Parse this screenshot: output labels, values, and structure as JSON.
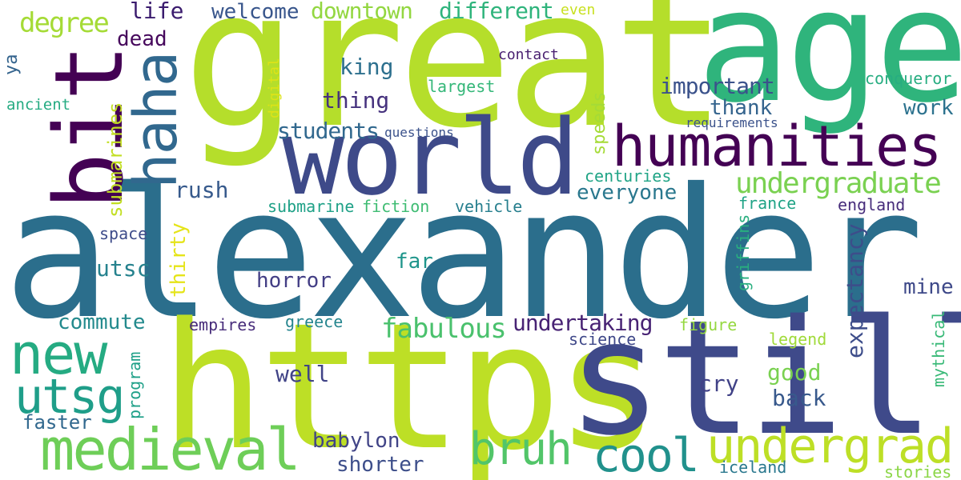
{
  "word_cloud": {
    "background": "#ffffff",
    "words": [
      {
        "text": "alexander",
        "color": "#2b6e8c"
      },
      {
        "text": "great",
        "color": "#b5de2b"
      },
      {
        "text": "age",
        "color": "#2fb47c"
      },
      {
        "text": "https",
        "color": "#bddf26"
      },
      {
        "text": "still",
        "color": "#3f4a8a"
      },
      {
        "text": "world",
        "color": "#3e4a89"
      },
      {
        "text": "bit",
        "color": "#440154"
      },
      {
        "text": "humanities",
        "color": "#440154"
      },
      {
        "text": "haha",
        "color": "#31688e"
      },
      {
        "text": "new",
        "color": "#25ab82"
      },
      {
        "text": "utsg",
        "color": "#1f9e89"
      },
      {
        "text": "medieval",
        "color": "#6ece58"
      },
      {
        "text": "undergrad",
        "color": "#bddf26"
      },
      {
        "text": "cool",
        "color": "#21918c"
      },
      {
        "text": "bruh",
        "color": "#52c569"
      },
      {
        "text": "undergraduate",
        "color": "#7ad151"
      },
      {
        "text": "degree",
        "color": "#a5db36"
      },
      {
        "text": "life",
        "color": "#3b1c6e"
      },
      {
        "text": "welcome",
        "color": "#39568c"
      },
      {
        "text": "downtown",
        "color": "#93d741"
      },
      {
        "text": "different",
        "color": "#2fb47c"
      },
      {
        "text": "even",
        "color": "#c8e020"
      },
      {
        "text": "dead",
        "color": "#46085c"
      },
      {
        "text": "ya",
        "color": "#33638d"
      },
      {
        "text": "ancient",
        "color": "#25ab82"
      },
      {
        "text": "king",
        "color": "#2d708e"
      },
      {
        "text": "contact",
        "color": "#481f70"
      },
      {
        "text": "digital",
        "color": "#dde318"
      },
      {
        "text": "largest",
        "color": "#35b779"
      },
      {
        "text": "conqueror",
        "color": "#27ad81"
      },
      {
        "text": "important",
        "color": "#3b528b"
      },
      {
        "text": "thing",
        "color": "#46327e"
      },
      {
        "text": "thank",
        "color": "#33638d"
      },
      {
        "text": "work",
        "color": "#2c728e"
      },
      {
        "text": "students",
        "color": "#31688e"
      },
      {
        "text": "questions",
        "color": "#3b528b"
      },
      {
        "text": "requirements",
        "color": "#3b528b"
      },
      {
        "text": "speeds",
        "color": "#a5db36"
      },
      {
        "text": "submarines",
        "color": "#c2df23"
      },
      {
        "text": "centuries",
        "color": "#20a486"
      },
      {
        "text": "rush",
        "color": "#375a8c"
      },
      {
        "text": "everyone",
        "color": "#2a788e"
      },
      {
        "text": "submarine",
        "color": "#1fa187"
      },
      {
        "text": "fiction",
        "color": "#3fbc73"
      },
      {
        "text": "vehicle",
        "color": "#277f8e"
      },
      {
        "text": "france",
        "color": "#20a386"
      },
      {
        "text": "england",
        "color": "#472d7b"
      },
      {
        "text": "space",
        "color": "#3e4c8a"
      },
      {
        "text": "thirty",
        "color": "#e5e419"
      },
      {
        "text": "griffins",
        "color": "#29af7f"
      },
      {
        "text": "far",
        "color": "#1f958b"
      },
      {
        "text": "utsc",
        "color": "#26828e"
      },
      {
        "text": "expectancy",
        "color": "#3d4d8a"
      },
      {
        "text": "horror",
        "color": "#433e85"
      },
      {
        "text": "mine",
        "color": "#3e4989"
      },
      {
        "text": "commute",
        "color": "#238a8d"
      },
      {
        "text": "fabulous",
        "color": "#4ac16d"
      },
      {
        "text": "undertaking",
        "color": "#482374"
      },
      {
        "text": "empires",
        "color": "#472c7a"
      },
      {
        "text": "greece",
        "color": "#25858e"
      },
      {
        "text": "figure",
        "color": "#95d840"
      },
      {
        "text": "mythical",
        "color": "#38b977"
      },
      {
        "text": "science",
        "color": "#3f4889"
      },
      {
        "text": "legend",
        "color": "#a0da39"
      },
      {
        "text": "program",
        "color": "#1fa088"
      },
      {
        "text": "cry",
        "color": "#414287"
      },
      {
        "text": "good",
        "color": "#7ad151"
      },
      {
        "text": "well",
        "color": "#414487"
      },
      {
        "text": "back",
        "color": "#38598c"
      },
      {
        "text": "faster",
        "color": "#31688e"
      },
      {
        "text": "babylon",
        "color": "#414487"
      },
      {
        "text": "shorter",
        "color": "#3d4e8a"
      },
      {
        "text": "iceland",
        "color": "#2a788e"
      },
      {
        "text": "stories",
        "color": "#8bd646"
      }
    ]
  }
}
